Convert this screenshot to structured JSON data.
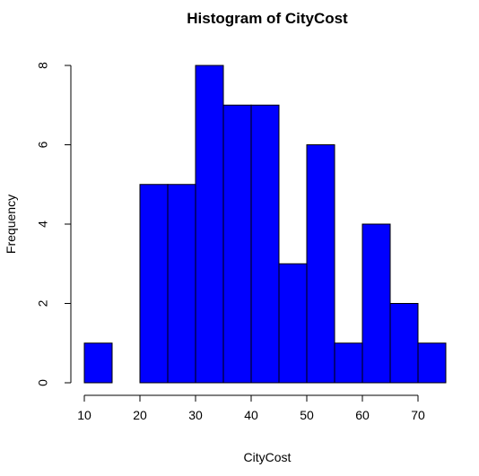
{
  "chart_data": {
    "type": "bar",
    "title": "Histogram of CityCost",
    "xlabel": "CityCost",
    "ylabel": "Frequency",
    "bins": [
      {
        "from": 10,
        "to": 15,
        "count": 1
      },
      {
        "from": 15,
        "to": 20,
        "count": 0
      },
      {
        "from": 20,
        "to": 25,
        "count": 5
      },
      {
        "from": 25,
        "to": 30,
        "count": 5
      },
      {
        "from": 30,
        "to": 35,
        "count": 8
      },
      {
        "from": 35,
        "to": 40,
        "count": 7
      },
      {
        "from": 40,
        "to": 45,
        "count": 7
      },
      {
        "from": 45,
        "to": 50,
        "count": 3
      },
      {
        "from": 50,
        "to": 55,
        "count": 6
      },
      {
        "from": 55,
        "to": 60,
        "count": 1
      },
      {
        "from": 60,
        "to": 65,
        "count": 4
      },
      {
        "from": 65,
        "to": 70,
        "count": 2
      },
      {
        "from": 70,
        "to": 75,
        "count": 1
      }
    ],
    "x_ticks": [
      10,
      20,
      30,
      40,
      50,
      60,
      70
    ],
    "y_ticks": [
      0,
      2,
      4,
      6,
      8
    ],
    "xlim": [
      10,
      75
    ],
    "ylim": [
      0,
      8
    ],
    "bar_color": "#0000ff",
    "grid": false
  }
}
